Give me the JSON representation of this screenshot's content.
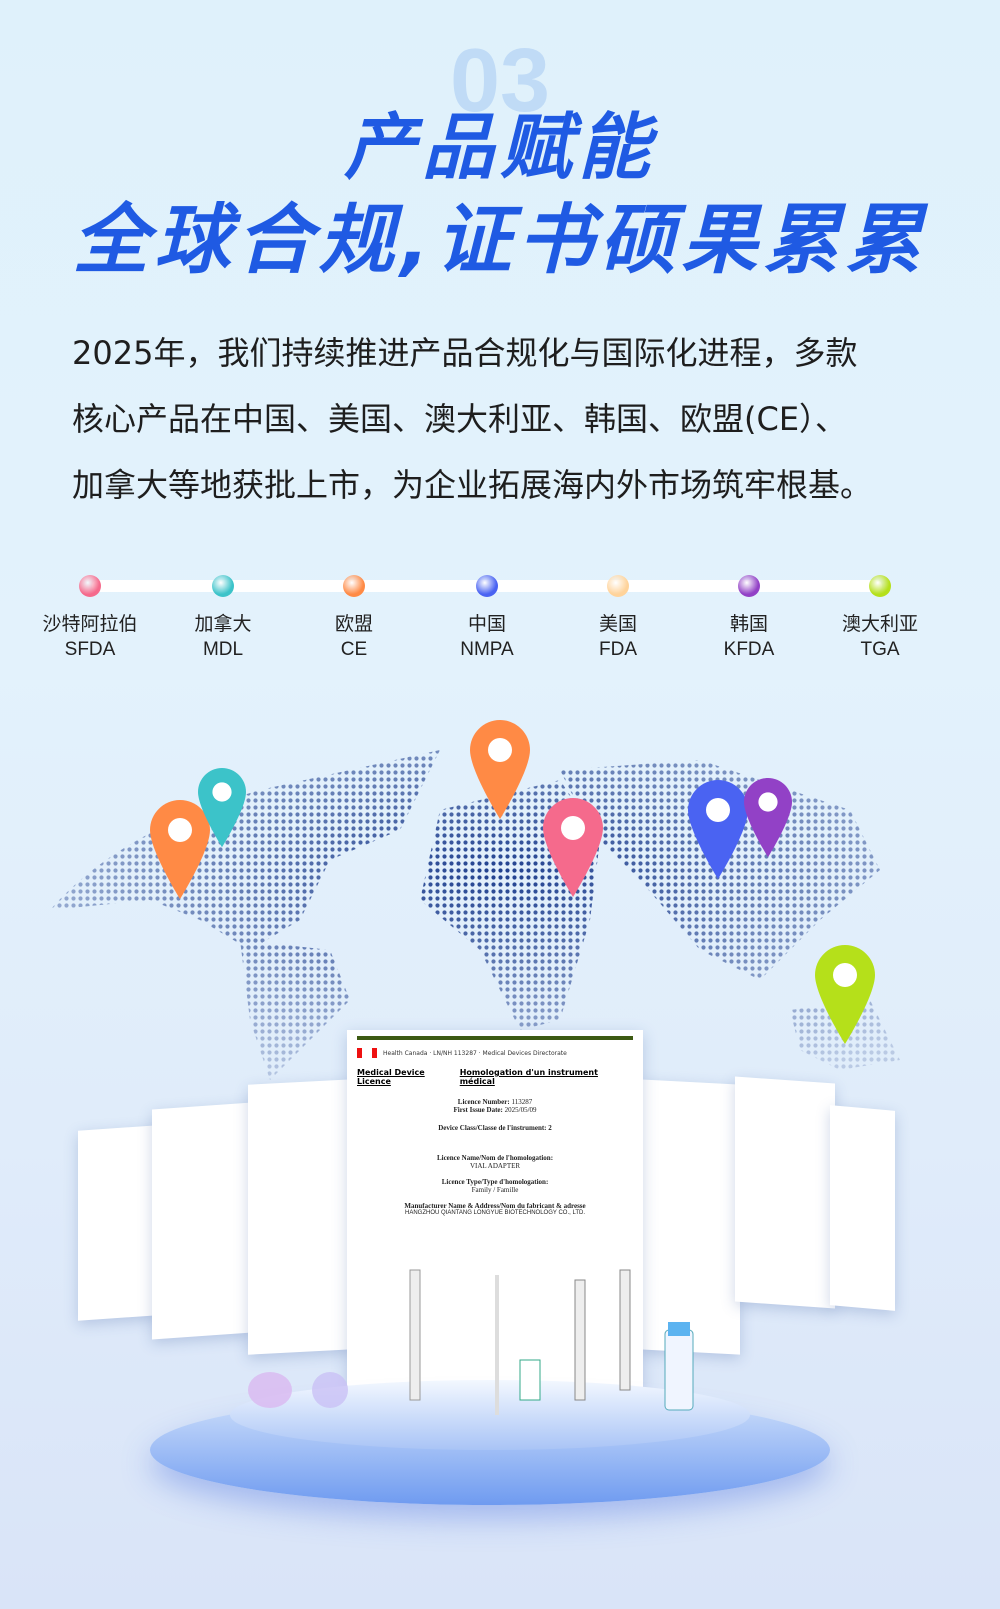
{
  "section_number": "03",
  "title_line1": "产品赋能",
  "title_line2": "全球合规,证书硕果累累",
  "paragraph": [
    "2025年，我们持续推进产品合规化与国际化进程，多款",
    "核心产品在中国、美国、澳大利亚、韩国、欧盟(CE）、",
    "加拿大等地获批上市，为企业拓展海内外市场筑牢根基。"
  ],
  "markets": [
    {
      "region": "沙特阿拉伯",
      "code": "SFDA",
      "color": "#f56a8c"
    },
    {
      "region": "加拿大",
      "code": "MDL",
      "color": "#3cc3c9"
    },
    {
      "region": "欧盟",
      "code": "CE",
      "color": "#ff8a45"
    },
    {
      "region": "中国",
      "code": "NMPA",
      "color": "#4a63f2"
    },
    {
      "region": "美国",
      "code": "FDA",
      "color": "#ffd39a"
    },
    {
      "region": "韩国",
      "code": "KFDA",
      "color": "#9241c6"
    },
    {
      "region": "澳大利亚",
      "code": "TGA",
      "color": "#b5e01a"
    }
  ],
  "certificate": {
    "title_en": "Medical Device Licence",
    "title_fr": "Homologation d'un instrument médical",
    "licence_number_label": "Licence Number:",
    "licence_number": "113287",
    "first_issue_label": "First Issue Date:",
    "first_issue": "2025/05/09",
    "device_class": "Device Class/Classe de l'instrument: 2",
    "licence_name_label": "Licence Name/Nom de l'homologation:",
    "licence_name": "VIAL ADAPTER",
    "licence_type_label": "Licence Type/Type d'homologation:",
    "licence_type": "Family / Famille",
    "manufacturer_label": "Manufacturer Name & Address/Nom du fabricant & adresse",
    "manufacturer": "HANGZHOU QIANTANG LONGYUE BIOTECHNOLOGY CO., LTD."
  }
}
